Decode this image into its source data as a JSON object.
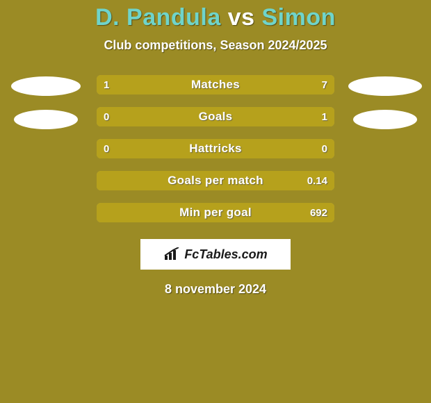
{
  "background_color": "#9b8b25",
  "title": {
    "left_name": "D. Pandula",
    "vs": " vs ",
    "right_name": "Simon",
    "left_color": "#6fd4ca",
    "right_color": "#6fd4ca",
    "vs_color": "#ffffff",
    "fontsize": 34
  },
  "subtitle": {
    "text": "Club competitions, Season 2024/2025",
    "fontsize": 18,
    "color": "#ffffff"
  },
  "bar_style": {
    "left_fill": "#b6a11c",
    "right_fill": "#b6a11c",
    "track": "#c7b548",
    "height": 28,
    "radius": 6,
    "label_color": "#ffffff",
    "value_color": "#ffffff"
  },
  "badges": {
    "left": [
      {
        "color": "#ffffff"
      },
      {
        "color": "#ffffff"
      }
    ],
    "right": [
      {
        "color": "#ffffff"
      },
      {
        "color": "#ffffff"
      }
    ]
  },
  "stats": [
    {
      "label": "Matches",
      "left_value": "1",
      "right_value": "7",
      "left_pct": 16,
      "right_pct": 84
    },
    {
      "label": "Goals",
      "left_value": "0",
      "right_value": "1",
      "left_pct": 17,
      "right_pct": 83
    },
    {
      "label": "Hattricks",
      "left_value": "0",
      "right_value": "0",
      "left_pct": 100,
      "right_pct": 0
    },
    {
      "label": "Goals per match",
      "left_value": "",
      "right_value": "0.14",
      "left_pct": 100,
      "right_pct": 0
    },
    {
      "label": "Min per goal",
      "left_value": "",
      "right_value": "692",
      "left_pct": 100,
      "right_pct": 0
    }
  ],
  "logo": {
    "text": "FcTables.com",
    "box_bg": "#ffffff",
    "text_color": "#1a1a1a",
    "icon_color": "#1a1a1a"
  },
  "date": {
    "text": "8 november 2024",
    "color": "#ffffff",
    "fontsize": 18
  }
}
